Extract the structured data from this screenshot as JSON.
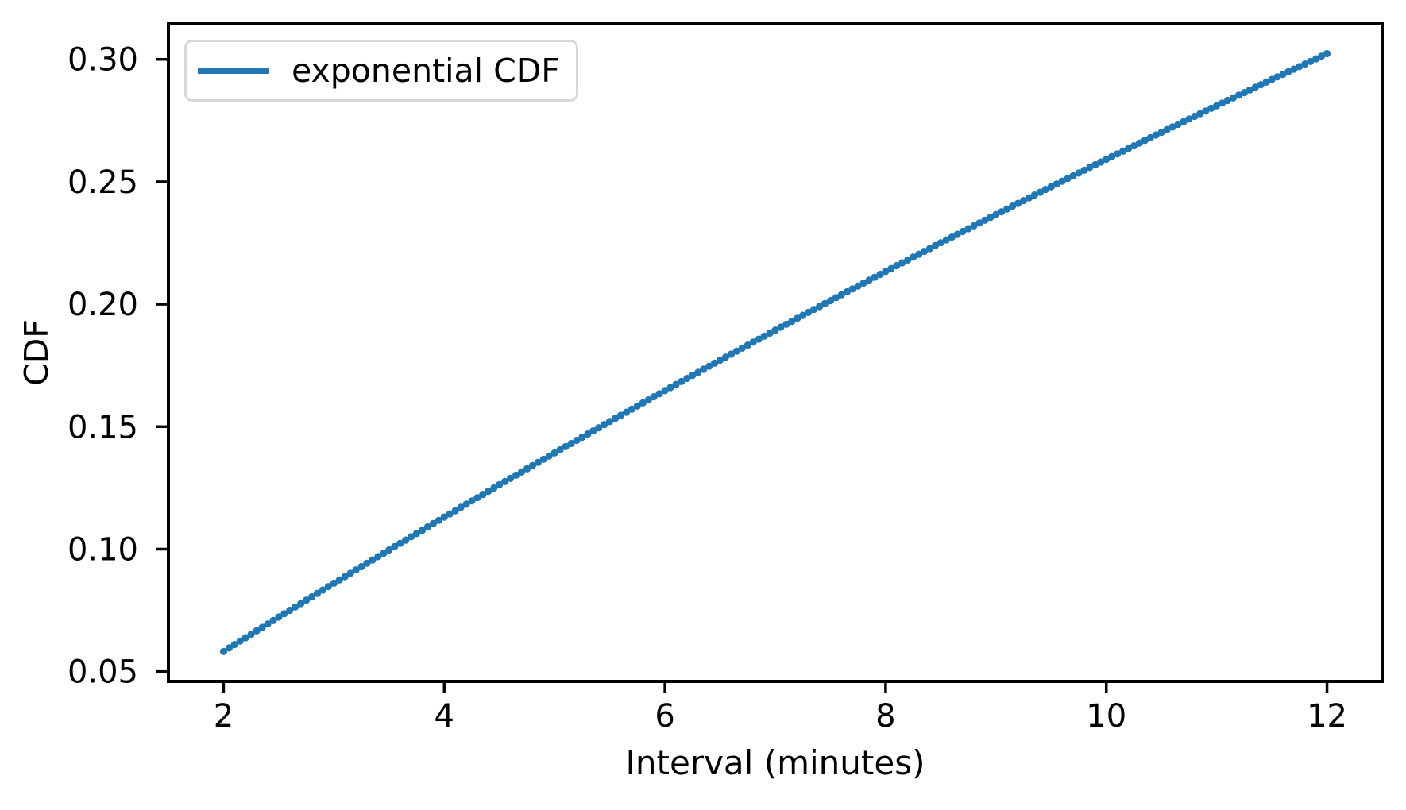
{
  "figure": {
    "background": "#ffffff"
  },
  "chart_data": {
    "type": "line",
    "title": "",
    "xlabel": "Interval (minutes)",
    "ylabel": "CDF",
    "grid": false,
    "legend": {
      "position": "upper left",
      "entries": [
        "exponential CDF"
      ]
    },
    "xlim": [
      1.5,
      12.5
    ],
    "ylim": [
      0.046,
      0.3145
    ],
    "xticks": [
      2,
      4,
      6,
      8,
      10,
      12
    ],
    "xtick_labels": [
      "2",
      "4",
      "6",
      "8",
      "10",
      "12"
    ],
    "yticks": [
      0.05,
      0.1,
      0.15,
      0.2,
      0.25,
      0.3
    ],
    "ytick_labels": [
      "0.05",
      "0.10",
      "0.15",
      "0.20",
      "0.25",
      "0.30"
    ],
    "axis_color": "#000000",
    "series": [
      {
        "name": "exponential CDF",
        "color": "#1f77b4",
        "marker": "circle",
        "marker_step_x": 0.05,
        "x": [
          2.0,
          2.5,
          3.0,
          3.5,
          4.0,
          4.5,
          5.0,
          5.5,
          6.0,
          6.5,
          7.0,
          7.5,
          8.0,
          8.5,
          9.0,
          9.5,
          10.0,
          10.5,
          11.0,
          11.5,
          12.0
        ],
        "y": [
          0.058235,
          0.072257,
          0.086069,
          0.099675,
          0.11308,
          0.126284,
          0.139292,
          0.152106,
          0.16473,
          0.177165,
          0.189416,
          0.201484,
          0.213372,
          0.225083,
          0.236621,
          0.247986,
          0.259182,
          0.270211,
          0.281076,
          0.29178,
          0.302324
        ]
      }
    ]
  }
}
